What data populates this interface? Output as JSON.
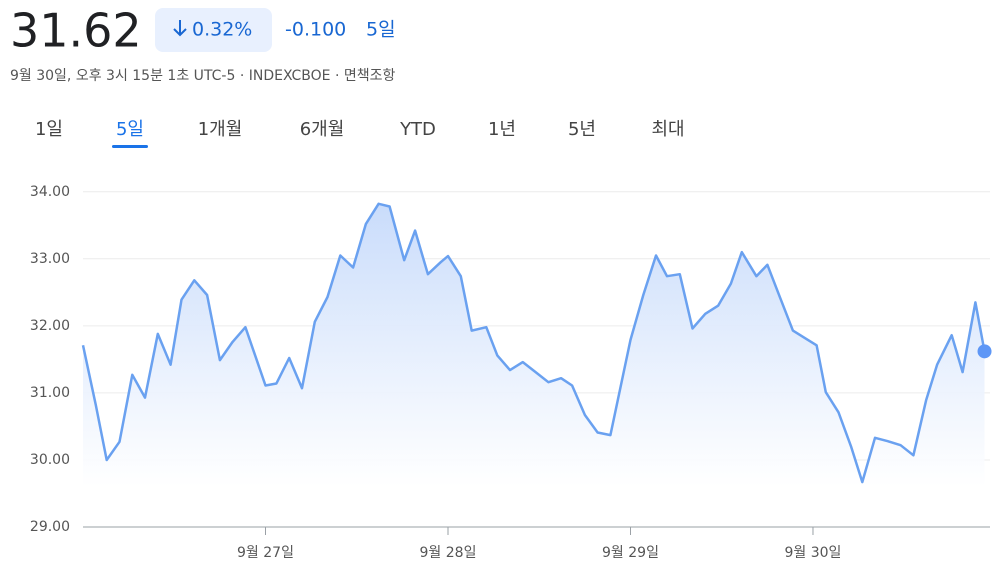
{
  "header": {
    "price": "31.62",
    "change_percent": "0.32%",
    "change": "-0.100",
    "period": "5일",
    "subtitle": "9월 30일, 오후 3시 15분 1초 UTC-5 · INDEXCBOE · 면책조항"
  },
  "tabs": {
    "items": [
      "1일",
      "5일",
      "1개월",
      "6개월",
      "YTD",
      "1년",
      "5년",
      "최대"
    ],
    "selected": 1
  },
  "chart_data": {
    "type": "line",
    "x": [
      26.0,
      26.07,
      26.13,
      26.2,
      26.27,
      26.34,
      26.41,
      26.48,
      26.54,
      26.61,
      26.68,
      26.75,
      26.82,
      26.89,
      27.0,
      27.06,
      27.13,
      27.2,
      27.27,
      27.34,
      27.41,
      27.48,
      27.55,
      27.62,
      27.68,
      27.76,
      27.82,
      27.89,
      27.96,
      28.0,
      28.07,
      28.13,
      28.21,
      28.27,
      28.34,
      28.41,
      28.48,
      28.55,
      28.62,
      28.68,
      28.75,
      28.82,
      28.89,
      29.0,
      29.07,
      29.14,
      29.2,
      29.27,
      29.34,
      29.41,
      29.48,
      29.55,
      29.61,
      29.69,
      29.75,
      29.82,
      29.89,
      29.96,
      30.02,
      30.07,
      30.14,
      30.21,
      30.27,
      30.34,
      30.41,
      30.48,
      30.55,
      30.62,
      30.68,
      30.76,
      30.82,
      30.89,
      30.94
    ],
    "series": [
      {
        "name": "INDEXCBOE",
        "color": "#6aa1f0",
        "values": [
          31.71,
          30.82,
          30.0,
          30.27,
          31.27,
          30.93,
          31.88,
          31.42,
          32.39,
          32.68,
          32.46,
          31.49,
          31.76,
          31.98,
          31.11,
          31.14,
          31.52,
          31.07,
          32.06,
          32.43,
          33.05,
          32.87,
          33.52,
          33.82,
          33.78,
          32.98,
          33.42,
          32.77,
          32.95,
          33.04,
          32.74,
          31.93,
          31.98,
          31.56,
          31.34,
          31.46,
          31.31,
          31.16,
          31.22,
          31.11,
          30.67,
          30.41,
          30.37,
          31.79,
          32.46,
          33.05,
          32.74,
          32.77,
          31.96,
          32.18,
          32.3,
          32.63,
          33.1,
          32.74,
          32.91,
          32.42,
          31.93,
          31.81,
          31.71,
          31.01,
          30.71,
          30.19,
          29.67,
          30.33,
          30.28,
          30.22,
          30.07,
          30.89,
          31.42,
          31.86,
          31.31,
          32.35,
          31.62
        ]
      }
    ],
    "xlim": [
      26.0,
      30.97
    ],
    "xticks": [
      {
        "value": 27,
        "label": "9월 27일"
      },
      {
        "value": 28,
        "label": "9월 28일"
      },
      {
        "value": 29,
        "label": "9월 29일"
      },
      {
        "value": 30,
        "label": "9월 30일"
      }
    ],
    "ylim": [
      29,
      34.25
    ],
    "yticks": [
      {
        "value": 29,
        "label": "29.00"
      },
      {
        "value": 30,
        "label": "30.00"
      },
      {
        "value": 31,
        "label": "31.00"
      },
      {
        "value": 32,
        "label": "32.00"
      },
      {
        "value": 33,
        "label": "33.00"
      },
      {
        "value": 34,
        "label": "34.00"
      }
    ],
    "grid": true
  }
}
